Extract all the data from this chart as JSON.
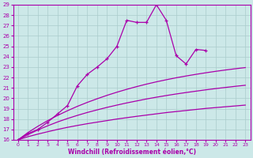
{
  "xlabel": "Windchill (Refroidissement éolien,°C)",
  "bg_color": "#cce8e8",
  "grid_color": "#aacccc",
  "line_color": "#aa00aa",
  "xlim": [
    -0.5,
    23.5
  ],
  "ylim": [
    16,
    29
  ],
  "xticks": [
    0,
    1,
    2,
    3,
    4,
    5,
    6,
    7,
    8,
    9,
    10,
    11,
    12,
    13,
    14,
    15,
    16,
    17,
    18,
    19,
    20,
    21,
    22,
    23
  ],
  "yticks": [
    16,
    17,
    18,
    19,
    20,
    21,
    22,
    23,
    24,
    25,
    26,
    27,
    28,
    29
  ],
  "series": [
    {
      "x": [
        0,
        1,
        2,
        3,
        4,
        5,
        6,
        7,
        8,
        9,
        10,
        11,
        12,
        13,
        14,
        15,
        16,
        17,
        18,
        19,
        20,
        21,
        22,
        23
      ],
      "y": [
        16.0,
        16.3,
        16.55,
        16.78,
        17.0,
        17.2,
        17.38,
        17.55,
        17.7,
        17.85,
        18.0,
        18.13,
        18.26,
        18.38,
        18.5,
        18.62,
        18.72,
        18.82,
        18.92,
        19.02,
        19.1,
        19.18,
        19.26,
        19.34
      ],
      "marker": false,
      "lw": 0.9
    },
    {
      "x": [
        0,
        1,
        2,
        3,
        4,
        5,
        6,
        7,
        8,
        9,
        10,
        11,
        12,
        13,
        14,
        15,
        16,
        17,
        18,
        19,
        20,
        21,
        22,
        23
      ],
      "y": [
        16.0,
        16.5,
        16.95,
        17.35,
        17.72,
        18.05,
        18.35,
        18.63,
        18.88,
        19.12,
        19.34,
        19.55,
        19.74,
        19.93,
        20.1,
        20.26,
        20.41,
        20.55,
        20.68,
        20.81,
        20.93,
        21.04,
        21.15,
        21.25
      ],
      "marker": false,
      "lw": 0.9
    },
    {
      "x": [
        0,
        1,
        2,
        3,
        4,
        5,
        6,
        7,
        8,
        9,
        10,
        11,
        12,
        13,
        14,
        15,
        16,
        17,
        18,
        19,
        20,
        21,
        22,
        23
      ],
      "y": [
        16.0,
        16.7,
        17.3,
        17.85,
        18.35,
        18.8,
        19.22,
        19.6,
        19.95,
        20.28,
        20.58,
        20.86,
        21.12,
        21.36,
        21.58,
        21.78,
        21.97,
        22.14,
        22.3,
        22.45,
        22.59,
        22.72,
        22.84,
        22.95
      ],
      "marker": false,
      "lw": 0.9
    },
    {
      "x": [
        0,
        1,
        2,
        3,
        4,
        5,
        6,
        7,
        8,
        9,
        10,
        11,
        12,
        13,
        14,
        15,
        16,
        17,
        18,
        19,
        20,
        21,
        22,
        23
      ],
      "y": [
        16.0,
        16.6,
        17.0,
        17.7,
        18.5,
        19.3,
        21.2,
        22.3,
        23.0,
        23.8,
        25.0,
        27.5,
        27.3,
        27.3,
        29.0,
        27.5,
        24.1,
        23.3,
        24.7,
        24.6,
        null,
        null,
        null,
        null
      ],
      "marker": true,
      "lw": 0.9
    }
  ]
}
